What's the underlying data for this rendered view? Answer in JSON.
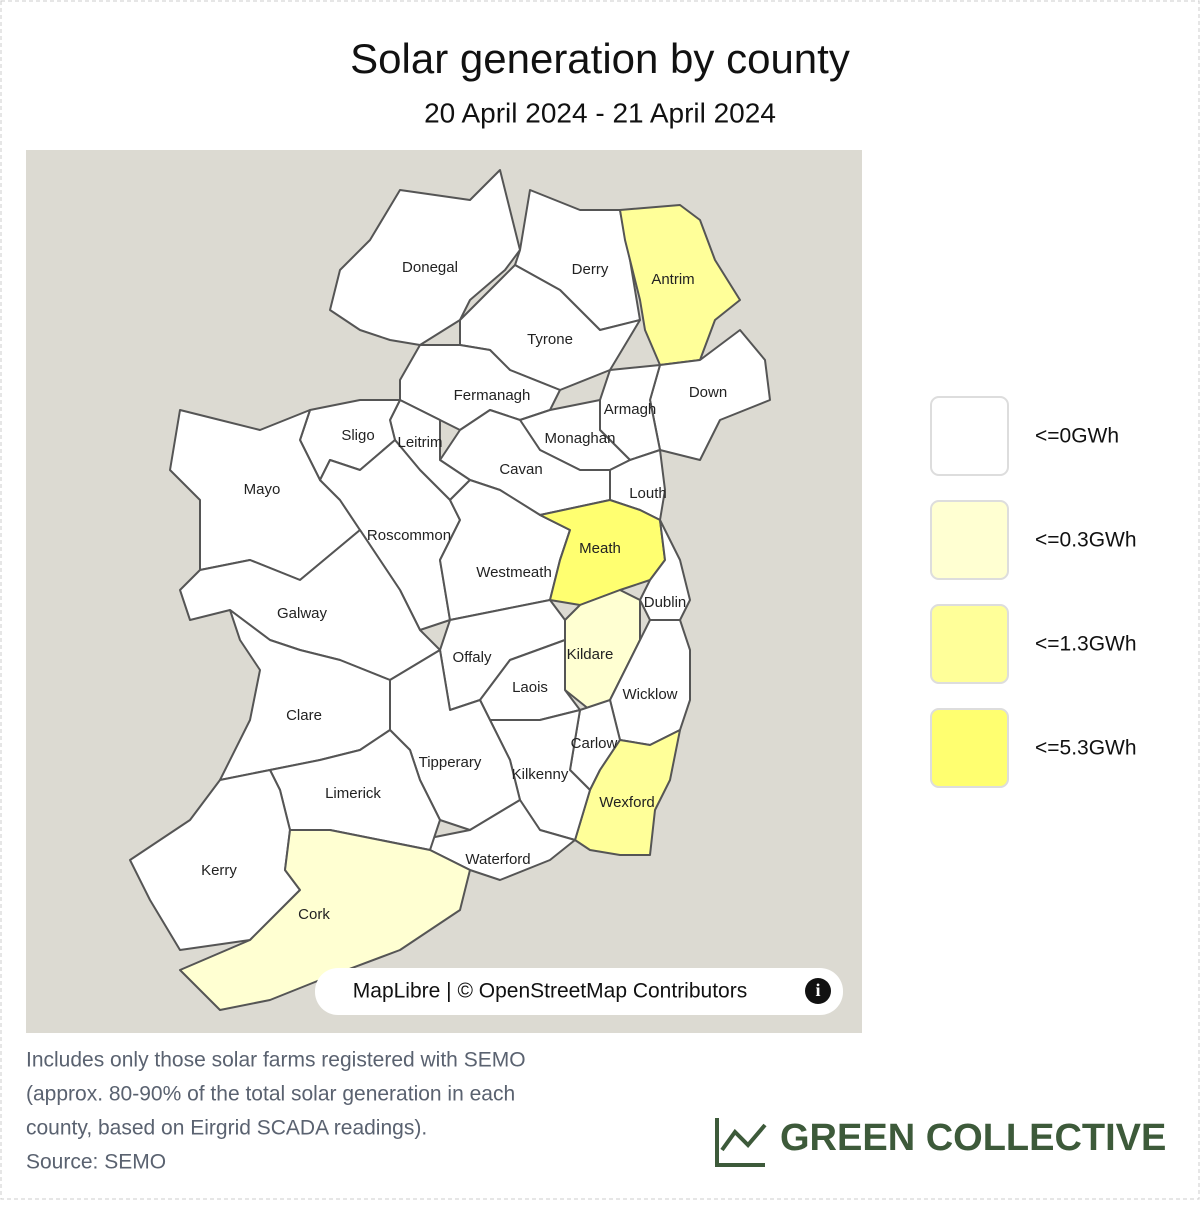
{
  "title": "Solar generation by county",
  "subtitle": "20 April 2024 - 21 April 2024",
  "legend": [
    {
      "label": "<=0GWh",
      "color": "#ffffff"
    },
    {
      "label": "<=0.3GWh",
      "color": "#ffffd2"
    },
    {
      "label": "<=1.3GWh",
      "color": "#ffff99"
    },
    {
      "label": "<=5.3GWh",
      "color": "#ffff70"
    }
  ],
  "counties": [
    {
      "name": "Donegal",
      "bin": 0
    },
    {
      "name": "Derry",
      "bin": 0
    },
    {
      "name": "Antrim",
      "bin": 2
    },
    {
      "name": "Tyrone",
      "bin": 0
    },
    {
      "name": "Down",
      "bin": 0
    },
    {
      "name": "Armagh",
      "bin": 0
    },
    {
      "name": "Fermanagh",
      "bin": 0
    },
    {
      "name": "Monaghan",
      "bin": 0
    },
    {
      "name": "Louth",
      "bin": 0
    },
    {
      "name": "Cavan",
      "bin": 0
    },
    {
      "name": "Leitrim",
      "bin": 0
    },
    {
      "name": "Sligo",
      "bin": 0
    },
    {
      "name": "Mayo",
      "bin": 0
    },
    {
      "name": "Roscommon",
      "bin": 0
    },
    {
      "name": "Galway",
      "bin": 0
    },
    {
      "name": "Westmeath",
      "bin": 0
    },
    {
      "name": "Meath",
      "bin": 3
    },
    {
      "name": "Dublin",
      "bin": 0
    },
    {
      "name": "Kildare",
      "bin": 1
    },
    {
      "name": "Offaly",
      "bin": 0
    },
    {
      "name": "Laois",
      "bin": 0
    },
    {
      "name": "Wicklow",
      "bin": 0
    },
    {
      "name": "Carlow",
      "bin": 0
    },
    {
      "name": "Wexford",
      "bin": 2
    },
    {
      "name": "Kilkenny",
      "bin": 0
    },
    {
      "name": "Tipperary",
      "bin": 0
    },
    {
      "name": "Waterford",
      "bin": 0
    },
    {
      "name": "Clare",
      "bin": 0
    },
    {
      "name": "Limerick",
      "bin": 0
    },
    {
      "name": "Kerry",
      "bin": 0
    },
    {
      "name": "Cork",
      "bin": 1
    }
  ],
  "attribution": "MapLibre | © OpenStreetMap Contributors",
  "footnote": [
    "Includes only those solar farms registered with SEMO",
    "(approx. 80-90% of the total solar generation in each",
    "county, based on Eirgrid SCADA readings).",
    "Source: SEMO"
  ],
  "brand": "GREEN COLLECTIVE"
}
